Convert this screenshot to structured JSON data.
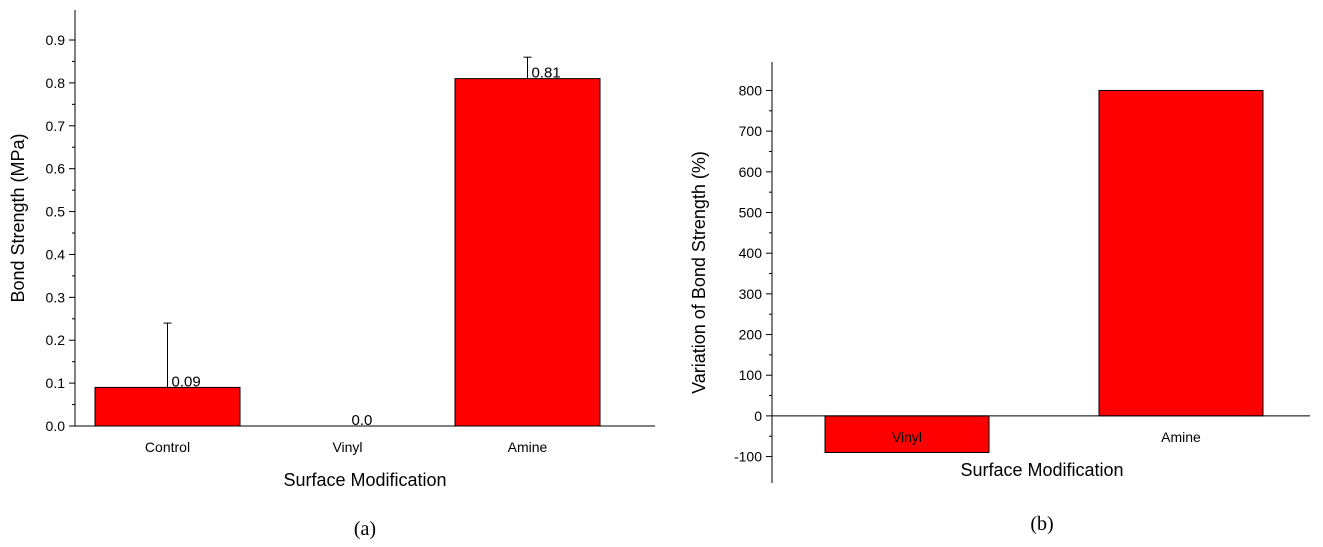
{
  "colors": {
    "bar": "#ff0000",
    "axis": "#000000"
  },
  "chart_data": [
    {
      "type": "bar",
      "panel_label": "(a)",
      "categories": [
        "Control",
        "Vinyl",
        "Amine"
      ],
      "values": [
        0.09,
        0.0,
        0.81
      ],
      "error_upper": [
        0.24,
        null,
        0.86
      ],
      "data_labels": [
        "0.09",
        "0.0",
        "0.81"
      ],
      "xlabel": "Surface Modification",
      "ylabel": "Bond Strength (MPa)",
      "ylim": [
        0,
        0.97
      ],
      "yticks": [
        0.0,
        0.1,
        0.2,
        0.3,
        0.4,
        0.5,
        0.6,
        0.7,
        0.8,
        0.9
      ],
      "ytick_labels": [
        "0.0",
        "0.1",
        "0.2",
        "0.3",
        "0.4",
        "0.5",
        "0.6",
        "0.7",
        "0.8",
        "0.9"
      ],
      "grid": false
    },
    {
      "type": "bar",
      "panel_label": "(b)",
      "categories": [
        "Vinyl",
        "Amine"
      ],
      "values": [
        -90,
        800
      ],
      "xlabel": "Surface Modification",
      "ylabel": "Variation of Bond Strength (%)",
      "ylim": [
        -165,
        870
      ],
      "yticks": [
        -100,
        0,
        100,
        200,
        300,
        400,
        500,
        600,
        700,
        800
      ],
      "ytick_labels": [
        "-100",
        "0",
        "100",
        "200",
        "300",
        "400",
        "500",
        "600",
        "700",
        "800"
      ],
      "grid": false
    }
  ]
}
